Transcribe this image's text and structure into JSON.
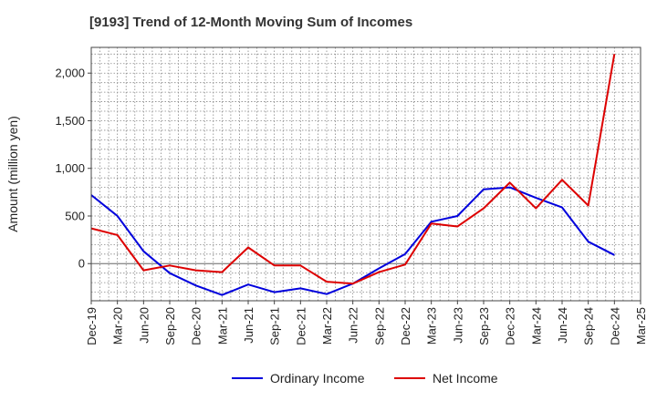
{
  "chart_data": {
    "type": "line",
    "title": "[9193]  Trend of 12-Month Moving Sum of Incomes",
    "ylabel": "Amount (million yen)",
    "xlabel": "",
    "categories": [
      "Dec-19",
      "Mar-20",
      "Jun-20",
      "Sep-20",
      "Dec-20",
      "Mar-21",
      "Jun-21",
      "Sep-21",
      "Dec-21",
      "Mar-22",
      "Jun-22",
      "Sep-22",
      "Dec-22",
      "Mar-23",
      "Jun-23",
      "Sep-23",
      "Dec-23",
      "Mar-24",
      "Jun-24",
      "Sep-24",
      "Dec-24",
      "Mar-25"
    ],
    "ylim": [
      -390,
      2270
    ],
    "yticks": [
      0,
      500,
      1000,
      1500,
      2000
    ],
    "ytick_labels": [
      "0",
      "500",
      "1,000",
      "1,500",
      "2,000"
    ],
    "grid": true,
    "legend_position": "bottom",
    "series": [
      {
        "name": "Ordinary Income",
        "color": "#0000dd",
        "values": [
          720,
          500,
          130,
          -100,
          -230,
          -330,
          -220,
          -300,
          -260,
          -320,
          -210,
          -50,
          100,
          440,
          500,
          780,
          800,
          690,
          590,
          230,
          90,
          null
        ]
      },
      {
        "name": "Net Income",
        "color": "#dd0000",
        "values": [
          370,
          300,
          -70,
          -20,
          -70,
          -90,
          170,
          -20,
          -20,
          -190,
          -210,
          -90,
          -10,
          420,
          390,
          580,
          850,
          580,
          880,
          610,
          2200,
          null
        ]
      }
    ]
  }
}
